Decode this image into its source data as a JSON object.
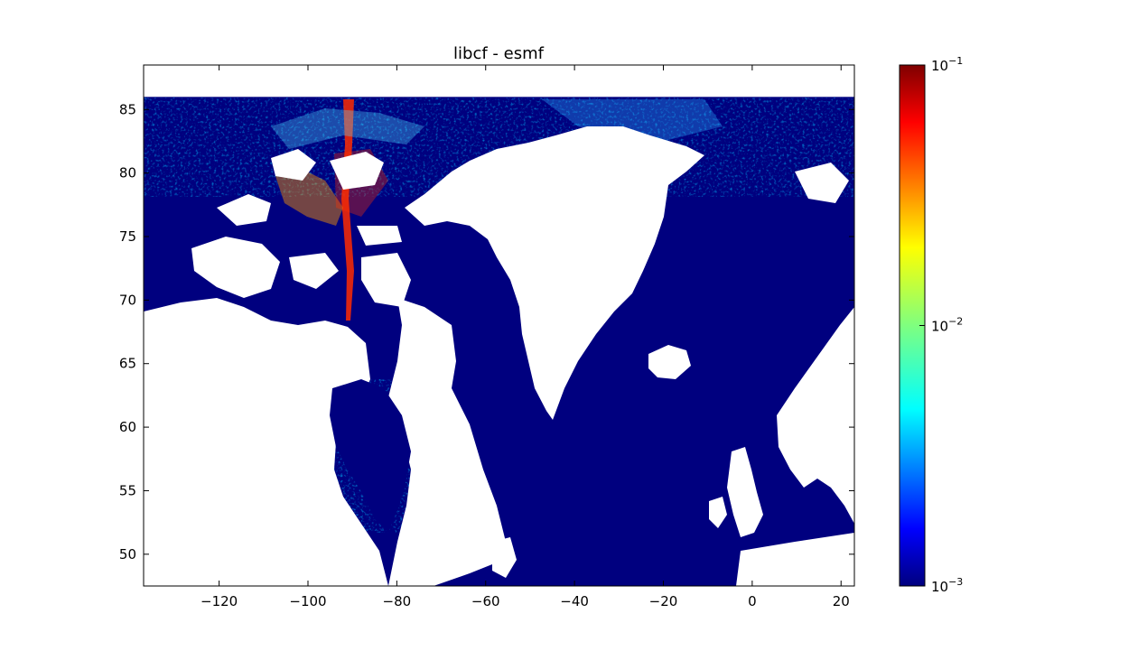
{
  "chart_data": {
    "type": "heatmap",
    "title": "libcf - esmf",
    "xlabel": "",
    "ylabel": "",
    "xlim": [
      -137,
      23
    ],
    "ylim": [
      47.5,
      88.5
    ],
    "data_lat_max": 86,
    "xticks": [
      -120,
      -100,
      -80,
      -60,
      -40,
      -20,
      0,
      20
    ],
    "yticks": [
      50,
      55,
      60,
      65,
      70,
      75,
      80,
      85
    ],
    "xtick_labels": [
      "−120",
      "−100",
      "−80",
      "−60",
      "−40",
      "−20",
      "0",
      "20"
    ],
    "ytick_labels": [
      "50",
      "55",
      "60",
      "65",
      "70",
      "75",
      "80",
      "85"
    ],
    "colorbar": {
      "scale": "log",
      "range": [
        0.001,
        0.1
      ],
      "ticks": [
        {
          "base": "10",
          "exp": "−1"
        },
        {
          "base": "10",
          "exp": "−2"
        },
        {
          "base": "10",
          "exp": "−3"
        }
      ],
      "tick_values": [
        0.1,
        0.01,
        0.001
      ],
      "colormap": "jet",
      "colors": [
        "#00007f",
        "#0000ff",
        "#007fff",
        "#00ffff",
        "#7fff7f",
        "#ffff00",
        "#ff7f00",
        "#ff0000",
        "#7f0000"
      ]
    },
    "background_value_color": "#00007f",
    "missing_color": "#ffffff"
  }
}
